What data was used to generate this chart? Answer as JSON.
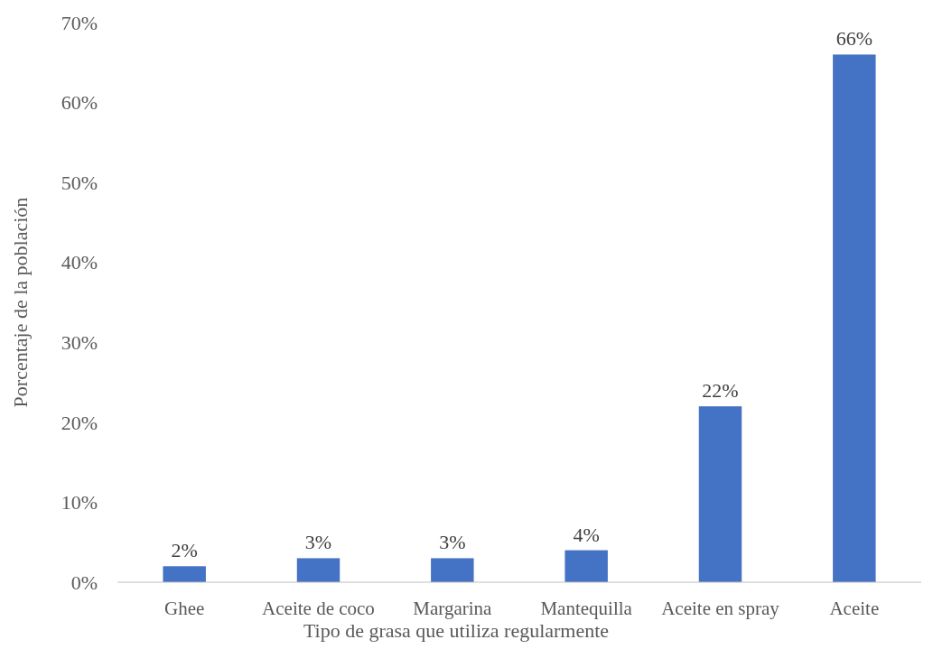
{
  "chart_data": {
    "type": "bar",
    "xlabel": "Tipo de grasa que utiliza regularmente",
    "ylabel": "Porcentaje de la población",
    "categories": [
      "Ghee",
      "Aceite de coco",
      "Margarina",
      "Mantequilla",
      "Aceite en spray",
      "Aceite"
    ],
    "values": [
      2,
      3,
      3,
      4,
      22,
      66
    ],
    "color": "#4472c4",
    "value_labels": [
      "2%",
      "3%",
      "3%",
      "4%",
      "22%",
      "66%"
    ],
    "ylim": [
      0,
      70
    ],
    "yticks": [
      {
        "value": 0,
        "label": "0%"
      },
      {
        "value": 10,
        "label": "10%"
      },
      {
        "value": 20,
        "label": "20%"
      },
      {
        "value": 30,
        "label": "30%"
      },
      {
        "value": 40,
        "label": "40%"
      },
      {
        "value": 50,
        "label": "50%"
      },
      {
        "value": 60,
        "label": "60%"
      },
      {
        "value": 70,
        "label": "70%"
      }
    ],
    "grid": false
  }
}
